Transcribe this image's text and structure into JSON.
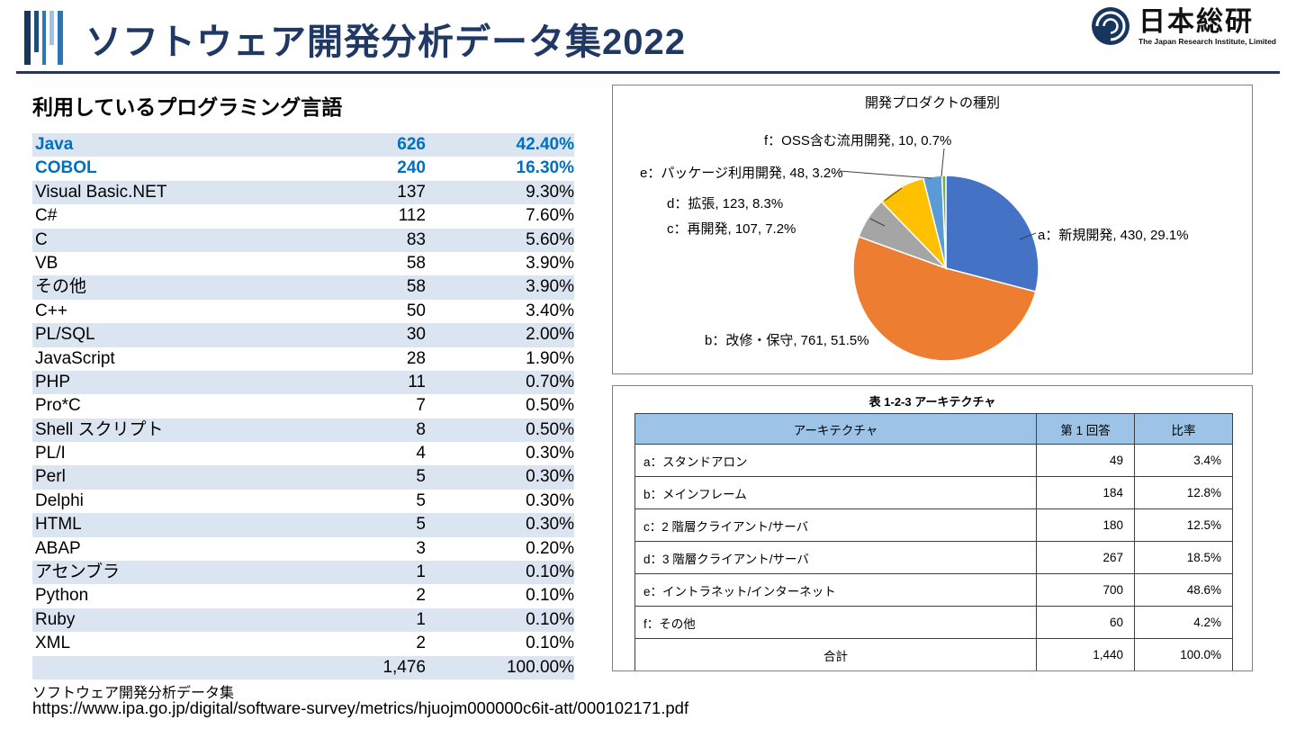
{
  "colors": {
    "title": "#1F3864",
    "highlight_text": "#0070C0",
    "row_alt": "#DBE5F1",
    "arch_header_bg": "#9DC3E6",
    "panel_border": "#808080"
  },
  "header": {
    "title": "ソフトウェア開発分析データ集2022",
    "logo": {
      "name": "日本総研",
      "subtitle": "The Japan Research Institute, Limited"
    }
  },
  "left": {
    "heading": "利用しているプログラミング言語",
    "languages": {
      "rows": [
        {
          "name": "Java",
          "count": "626",
          "pct": "42.40%",
          "highlight": true
        },
        {
          "name": "COBOL",
          "count": "240",
          "pct": "16.30%",
          "highlight": true
        },
        {
          "name": "Visual Basic.NET",
          "count": "137",
          "pct": "9.30%"
        },
        {
          "name": "C#",
          "count": "112",
          "pct": "7.60%"
        },
        {
          "name": "C",
          "count": "83",
          "pct": "5.60%"
        },
        {
          "name": "VB",
          "count": "58",
          "pct": "3.90%"
        },
        {
          "name": "その他",
          "count": "58",
          "pct": "3.90%"
        },
        {
          "name": "C++",
          "count": "50",
          "pct": "3.40%"
        },
        {
          "name": "PL/SQL",
          "count": "30",
          "pct": "2.00%"
        },
        {
          "name": "JavaScript",
          "count": "28",
          "pct": "1.90%"
        },
        {
          "name": "PHP",
          "count": "11",
          "pct": "0.70%"
        },
        {
          "name": "Pro*C",
          "count": "7",
          "pct": "0.50%"
        },
        {
          "name": "Shell スクリプト",
          "count": "8",
          "pct": "0.50%"
        },
        {
          "name": "PL/I",
          "count": "4",
          "pct": "0.30%"
        },
        {
          "name": "Perl",
          "count": "5",
          "pct": "0.30%"
        },
        {
          "name": "Delphi",
          "count": "5",
          "pct": "0.30%"
        },
        {
          "name": "HTML",
          "count": "5",
          "pct": "0.30%"
        },
        {
          "name": "ABAP",
          "count": "3",
          "pct": "0.20%"
        },
        {
          "name": "アセンブラ",
          "count": "1",
          "pct": "0.10%"
        },
        {
          "name": "Python",
          "count": "2",
          "pct": "0.10%"
        },
        {
          "name": "Ruby",
          "count": "1",
          "pct": "0.10%"
        },
        {
          "name": "XML",
          "count": "2",
          "pct": "0.10%"
        }
      ],
      "total": {
        "name": "",
        "count": "1,476",
        "pct": "100.00%"
      }
    }
  },
  "pie_panel": {
    "title": "開発プロダクトの種別",
    "labels": {
      "a": "a：新規開発, 430, 29.1%",
      "b": "b：改修・保守, 761, 51.5%",
      "c": "c：再開発, 107, 7.2%",
      "d": "d：拡張, 123, 8.3%",
      "e": "e：パッケージ利用開発, 48, 3.2%",
      "f": "f：OSS含む流用開発, 10, 0.7%"
    }
  },
  "arch_panel": {
    "title": "表 1-2-3 アーキテクチャ",
    "table": {
      "headers": [
        "アーキテクチャ",
        "第 1 回答",
        "比率"
      ],
      "rows": [
        [
          "a：スタンドアロン",
          "49",
          "3.4%"
        ],
        [
          "b：メインフレーム",
          "184",
          "12.8%"
        ],
        [
          "c：2 階層クライアント/サーバ",
          "180",
          "12.5%"
        ],
        [
          "d：3 階層クライアント/サーバ",
          "267",
          "18.5%"
        ],
        [
          "e：イントラネット/インターネット",
          "700",
          "48.6%"
        ],
        [
          "f：その他",
          "60",
          "4.2%"
        ]
      ],
      "total": [
        "合計",
        "1,440",
        "100.0%"
      ]
    }
  },
  "footer": {
    "source": "ソフトウェア開発分析データ集",
    "url": "https://www.ipa.go.jp/digital/software-survey/metrics/hjuojm000000c6it-att/000102171.pdf"
  },
  "chart_data": {
    "type": "pie",
    "title": "開発プロダクトの種別",
    "labels": [
      "a：新規開発",
      "b：改修・保守",
      "c：再開発",
      "d：拡張",
      "e：パッケージ利用開発",
      "f：OSS含む流用開発"
    ],
    "values": [
      430,
      761,
      107,
      123,
      48,
      10
    ],
    "percents": [
      29.1,
      51.5,
      7.2,
      8.3,
      3.2,
      0.7
    ],
    "colors": [
      "#4472C4",
      "#ED7D31",
      "#A5A5A5",
      "#FFC000",
      "#5B9BD5",
      "#70AD47"
    ],
    "start_angle_deg": -90,
    "direction": "clockwise",
    "legend_position": "none",
    "label_style": "callout"
  }
}
